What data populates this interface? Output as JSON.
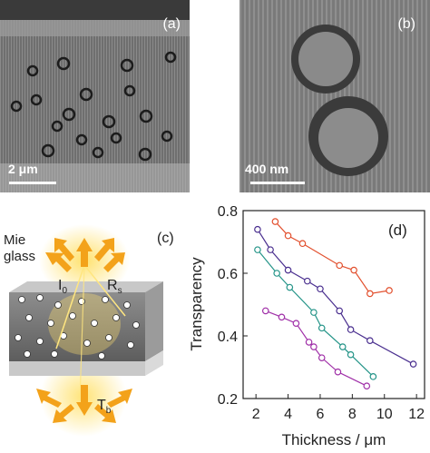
{
  "panels": {
    "a": {
      "label": "(a)",
      "scalebar": "2 μm"
    },
    "b": {
      "label": "(b)",
      "scalebar": "400 nm"
    },
    "c": {
      "label": "(c)",
      "mie_label": "Mie\nglass",
      "mie_line1": "Mie",
      "mie_line2": "glass",
      "i0_main": "I",
      "i0_sub": "0",
      "rs_main": "R",
      "rs_sub": "s",
      "tb_main": "T",
      "tb_sub": "b"
    },
    "d": {
      "label": "(d)"
    }
  },
  "chart_data": {
    "type": "scatter",
    "xlabel": "Thickness / μm",
    "ylabel": "Transparency",
    "xlim": [
      1.2,
      12.5
    ],
    "ylim": [
      0.2,
      0.8
    ],
    "xticks": [
      2,
      4,
      6,
      8,
      10,
      12
    ],
    "yticks": [
      0.2,
      0.4,
      0.6,
      0.8
    ],
    "grid": false,
    "series": [
      {
        "color": "#e2502e",
        "x": [
          3.2,
          4.0,
          4.9,
          7.2,
          8.1,
          9.1,
          10.3
        ],
        "y": [
          0.765,
          0.72,
          0.695,
          0.625,
          0.61,
          0.535,
          0.545
        ]
      },
      {
        "color": "#4a2f8f",
        "x": [
          2.1,
          2.9,
          4.0,
          5.2,
          6.0,
          7.2,
          7.9,
          9.1,
          11.8
        ],
        "y": [
          0.74,
          0.675,
          0.61,
          0.575,
          0.55,
          0.48,
          0.42,
          0.385,
          0.31
        ]
      },
      {
        "color": "#249488",
        "x": [
          2.1,
          3.3,
          4.1,
          5.6,
          6.1,
          7.4,
          7.9,
          9.3
        ],
        "y": [
          0.675,
          0.6,
          0.555,
          0.475,
          0.425,
          0.365,
          0.34,
          0.27
        ]
      },
      {
        "color": "#a030a8",
        "x": [
          2.6,
          3.6,
          4.5,
          5.3,
          5.6,
          6.1,
          7.1,
          8.9
        ],
        "y": [
          0.48,
          0.46,
          0.44,
          0.38,
          0.365,
          0.33,
          0.285,
          0.24
        ]
      }
    ]
  }
}
